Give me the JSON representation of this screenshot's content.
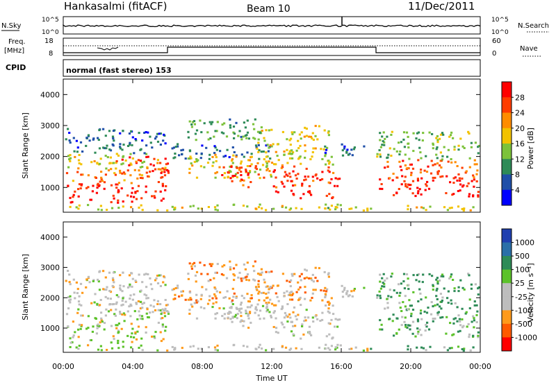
{
  "header": {
    "station": "Hankasalmi (fitACF)",
    "beam": "Beam 10",
    "date": "11/Dec/2011"
  },
  "nsky": {
    "label": "N.Sky",
    "ytick_top": "10^5",
    "ytick_bottom": "10^0",
    "right_label": "N.Search",
    "right_top": "10^5",
    "right_bottom": "10^0"
  },
  "freq": {
    "label_line1": "Freq.",
    "label_line2": "[MHz]",
    "ytick_top": "18",
    "ytick_bottom": "8",
    "right_label": "Nave",
    "right_top": "60",
    "right_bottom": "0"
  },
  "cpid": {
    "label": "CPID",
    "text": "normal (fast stereo) 153"
  },
  "chart_data": [
    {
      "type": "heatmap",
      "name": "power",
      "ylabel": "Slant Range [km]",
      "xlabel": "",
      "xlim": [
        0,
        24
      ],
      "ylim": [
        200,
        4500
      ],
      "yticks": [
        1000,
        2000,
        3000,
        4000
      ],
      "colorbar": {
        "label": "Power [dB]",
        "ticks": [
          "28",
          "24",
          "20",
          "16",
          "12",
          "8",
          "4"
        ],
        "colors": [
          "#ff0000",
          "#ff3c00",
          "#ff8c00",
          "#f2c200",
          "#7cc23a",
          "#2e8b57",
          "#1f4fa8",
          "#0000ff"
        ]
      }
    },
    {
      "type": "heatmap",
      "name": "velocity",
      "ylabel": "Slant Range [km]",
      "xlabel": "Time UT",
      "xlim": [
        0,
        24
      ],
      "ylim": [
        200,
        4500
      ],
      "yticks": [
        1000,
        2000,
        3000,
        4000
      ],
      "xticks": [
        "00:00",
        "04:00",
        "08:00",
        "12:00",
        "16:00",
        "20:00",
        "00:00"
      ],
      "colorbar": {
        "label": "Velocity [m s⁻¹]",
        "ticks": [
          "1000",
          "500",
          "100",
          "25",
          "-25",
          "-100",
          "-500",
          "-1000"
        ],
        "colors": [
          "#1f3fb0",
          "#2a6fa8",
          "#2e8b57",
          "#5cc22a",
          "#bdbdbd",
          "#bdbdbd",
          "#ff9a1a",
          "#ff5a00",
          "#ff0000"
        ]
      }
    }
  ]
}
